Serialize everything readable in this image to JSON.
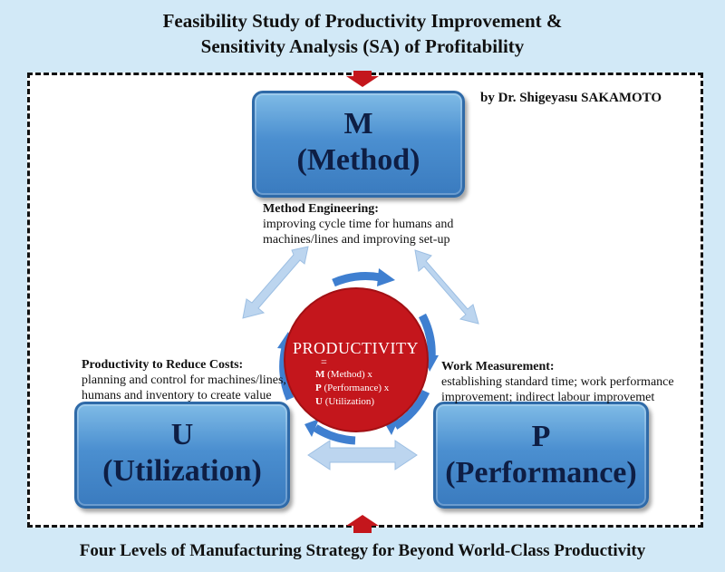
{
  "title": {
    "line1": "Feasibility Study of Productivity Improvement &",
    "line2": "Sensitivity Analysis (SA) of Profitability"
  },
  "byline": "by Dr. Shigeyasu SAKAMOTO",
  "footer": "Four Levels of Manufacturing Strategy for Beyond World-Class Productivity",
  "boxes": {
    "m": {
      "letter": "M",
      "label": "(Method)"
    },
    "u": {
      "letter": "U",
      "label": "(Utilization)"
    },
    "p": {
      "letter": "P",
      "label": "(Performance)"
    }
  },
  "descriptions": {
    "m": {
      "heading": "Method Engineering:",
      "line1": "improving cycle time for humans and",
      "line2": "machines/lines and improving set-up"
    },
    "u": {
      "heading": "Productivity to Reduce Costs:",
      "line1": "planning and control for machines/lines,",
      "line2": "humans and inventory to create value"
    },
    "p": {
      "heading": "Work Measurement:",
      "line1": "establishing standard time; work performance",
      "line2": "improvement; indirect labour improvemet"
    }
  },
  "center": {
    "title": "PRODUCTIVITY",
    "equals": "=",
    "factor1_letter": "M",
    "factor1_text": " (Method) x",
    "factor2_letter": "P",
    "factor2_text": " (Performance) x",
    "factor3_letter": "U",
    "factor3_text": " (Utilization)"
  },
  "colors": {
    "circle": "#c4161c",
    "box_blue": "#4b8fd0",
    "arrow_light": "#b9d3ee",
    "arrow_dark": "#3f7fd0",
    "indicator_red": "#c4161c"
  }
}
